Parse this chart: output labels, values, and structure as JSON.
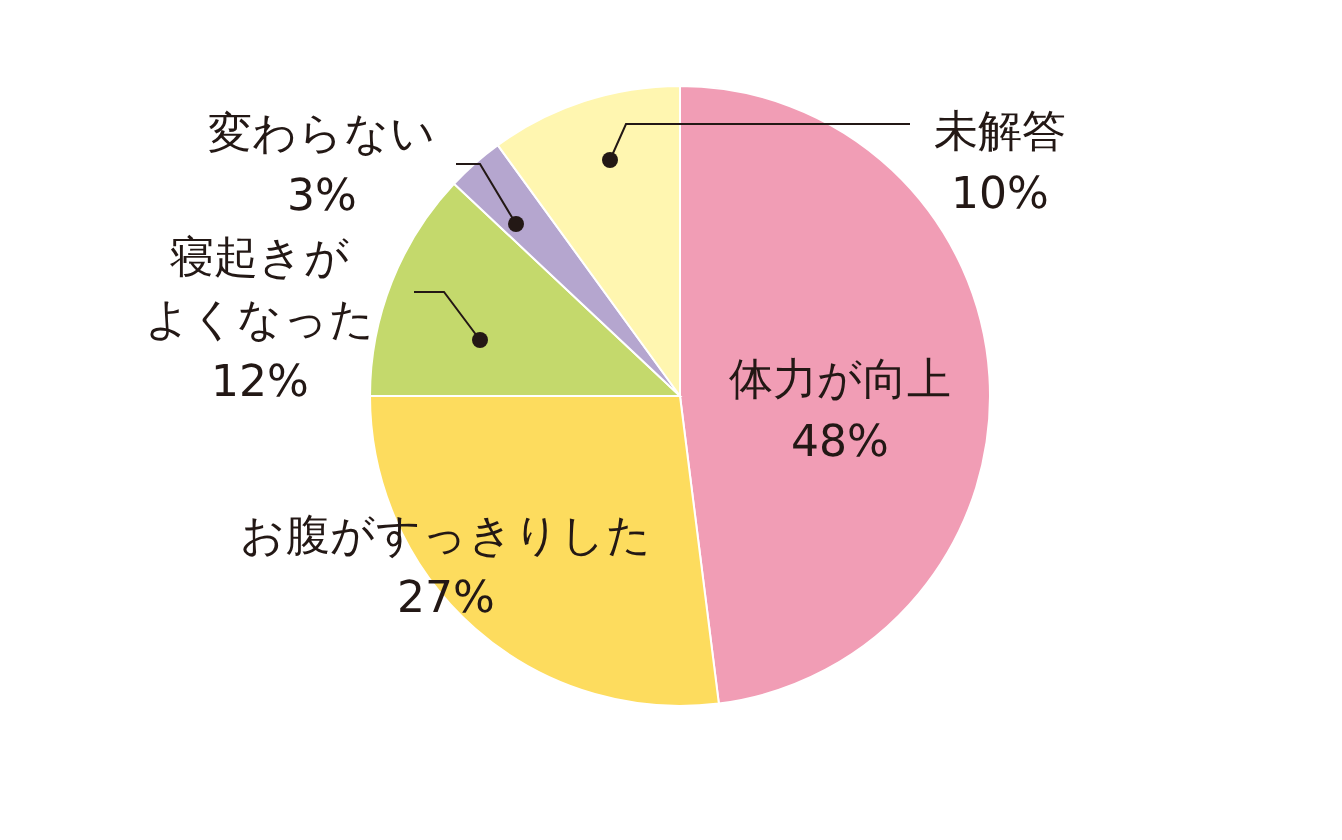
{
  "chart_data": {
    "type": "pie",
    "categories": [
      "体力が向上",
      "お腹がすっきりした",
      "寝起きがよくなった",
      "変わらない",
      "未解答"
    ],
    "values": [
      48,
      27,
      12,
      3,
      10
    ],
    "value_labels": [
      "48%",
      "27%",
      "12%",
      "3%",
      "10%"
    ],
    "colors": [
      "#f19db5",
      "#fddc5e",
      "#c4d96c",
      "#b5a6cf",
      "#fff6b0"
    ]
  }
}
